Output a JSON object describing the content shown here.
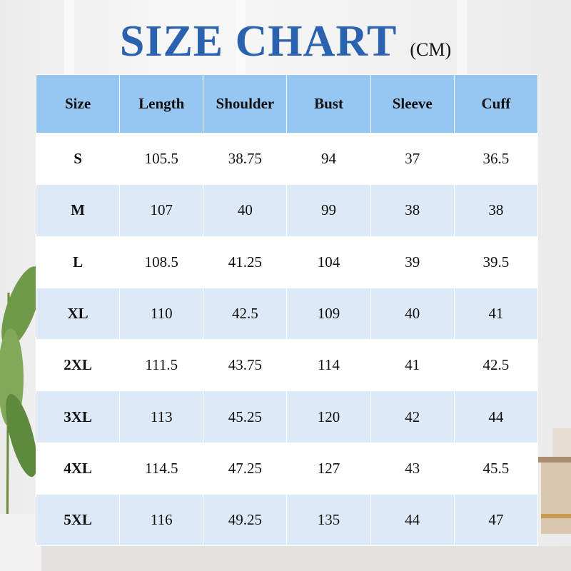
{
  "title": "SIZE CHART",
  "unit": "(CM)",
  "colors": {
    "title": "#2a62b0",
    "header_bg": "#96c6f2",
    "alt_row_bg": "#dde9f6"
  },
  "chart_data": {
    "type": "table",
    "columns": [
      "Size",
      "Length",
      "Shoulder",
      "Bust",
      "Sleeve",
      "Cuff"
    ],
    "rows": [
      [
        "S",
        "105.5",
        "38.75",
        "94",
        "37",
        "36.5"
      ],
      [
        "M",
        "107",
        "40",
        "99",
        "38",
        "38"
      ],
      [
        "L",
        "108.5",
        "41.25",
        "104",
        "39",
        "39.5"
      ],
      [
        "XL",
        "110",
        "42.5",
        "109",
        "40",
        "41"
      ],
      [
        "2XL",
        "111.5",
        "43.75",
        "114",
        "41",
        "42.5"
      ],
      [
        "3XL",
        "113",
        "45.25",
        "120",
        "42",
        "44"
      ],
      [
        "4XL",
        "114.5",
        "47.25",
        "127",
        "43",
        "45.5"
      ],
      [
        "5XL",
        "116",
        "49.25",
        "135",
        "44",
        "47"
      ]
    ]
  }
}
